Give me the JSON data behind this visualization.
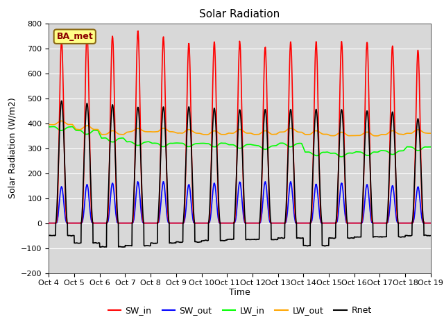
{
  "title": "Solar Radiation",
  "ylabel": "Solar Radiation (W/m2)",
  "xlabel": "Time",
  "ylim": [
    -200,
    800
  ],
  "bg_color": "#d8d8d8",
  "fig_bg": "#ffffff",
  "station_label": "BA_met",
  "xtick_labels": [
    "Oct 4",
    "Oct 5",
    "Oct 6",
    "Oct 7",
    "Oct 8",
    "Oct 9",
    "Oct 10",
    "Oct 11",
    "Oct 12",
    "Oct 13",
    "Oct 14",
    "Oct 15",
    "Oct 16",
    "Oct 17",
    "Oct 18",
    "Oct 19"
  ],
  "series": {
    "SW_in": {
      "color": "#ff0000",
      "lw": 1.2
    },
    "SW_out": {
      "color": "#0000ff",
      "lw": 1.2
    },
    "LW_in": {
      "color": "#00ff00",
      "lw": 1.2
    },
    "LW_out": {
      "color": "#ffa500",
      "lw": 1.2
    },
    "Rnet": {
      "color": "#000000",
      "lw": 1.2
    }
  },
  "n_days": 15,
  "pts_per_day": 144,
  "SW_in_peaks": [
    730,
    760,
    750,
    770,
    745,
    720,
    725,
    726,
    705,
    725,
    725,
    724,
    726,
    710,
    693
  ],
  "SW_out_peaks": [
    145,
    155,
    160,
    165,
    165,
    155,
    160,
    165,
    165,
    165,
    155,
    160,
    155,
    150,
    145
  ],
  "LW_in_base": [
    385,
    370,
    340,
    325,
    320,
    320,
    320,
    315,
    310,
    320,
    285,
    280,
    285,
    290,
    305
  ],
  "LW_out_base": [
    395,
    375,
    355,
    365,
    365,
    360,
    355,
    360,
    355,
    365,
    355,
    350,
    350,
    355,
    360
  ],
  "Rnet_peaks": [
    490,
    480,
    475,
    465,
    465,
    465,
    460,
    455,
    455,
    455,
    455,
    455,
    450,
    445,
    420
  ],
  "Rnet_night": [
    -50,
    -80,
    -95,
    -90,
    -80,
    -75,
    -70,
    -65,
    -65,
    -60,
    -90,
    -60,
    -55,
    -55,
    -50
  ]
}
